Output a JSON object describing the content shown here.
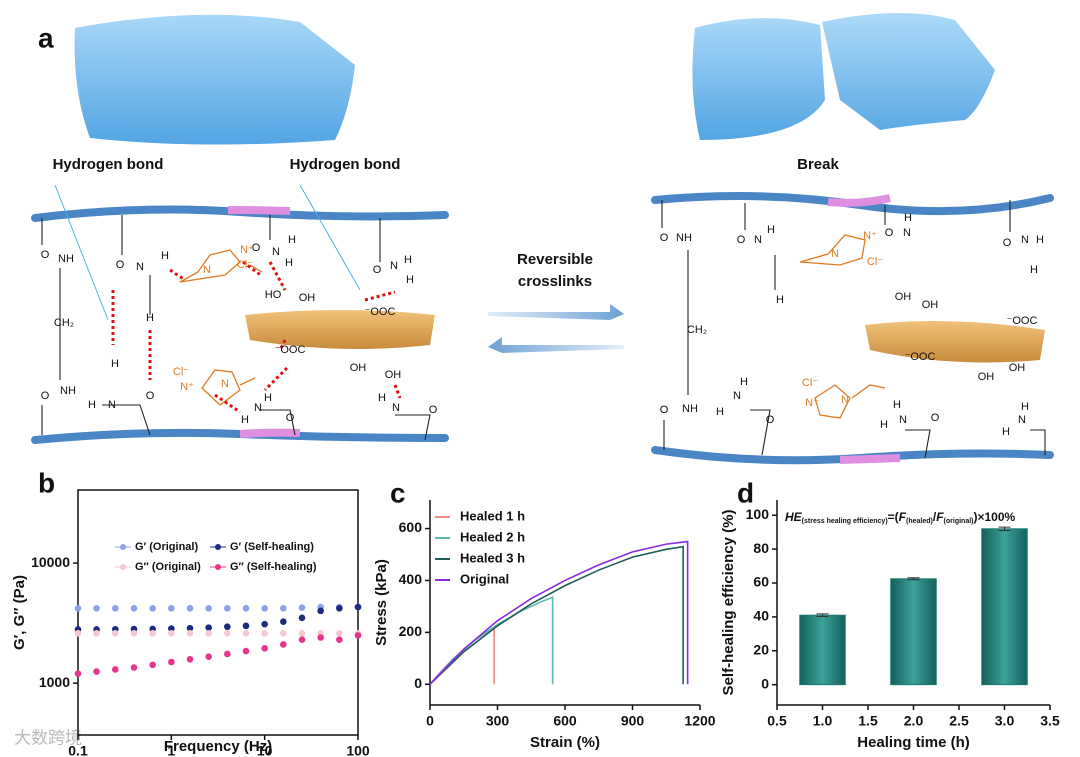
{
  "diagram": {
    "panel_label": "a",
    "hydrogen_bond_left": "Hydrogen bond",
    "hydrogen_bond_right": "Hydrogen bond",
    "break": "Break",
    "arrow_label": [
      "Reversible",
      "crosslinks"
    ],
    "labels": [
      "O",
      "NH",
      "CH₂",
      "NH",
      "O",
      "O",
      "N",
      "H",
      "H",
      "H",
      "H",
      "N",
      "O",
      "O",
      "N",
      "H",
      "H",
      "N",
      "N⁺",
      "Cl⁻",
      "Cl⁻",
      "N⁺",
      "N",
      "O",
      "N",
      "H",
      "H",
      "OH",
      "HO",
      "⁻OOC",
      "⁻OOC",
      "OH",
      "OH",
      "H",
      "N",
      "H",
      "O",
      "H",
      "N",
      "O",
      "O",
      "NH",
      "CH₂",
      "NH",
      "O",
      "O",
      "N",
      "H",
      "H",
      "N",
      "N⁺",
      "Cl⁻",
      "O",
      "N",
      "H",
      "O",
      "N",
      "H",
      "H",
      "OH",
      "OH",
      "⁻OOC",
      "⁻OOC",
      "OH",
      "OH",
      "H",
      "N",
      "H",
      "O",
      "Cl⁻",
      "N⁺",
      "N",
      "H",
      "N",
      "H",
      "O",
      "H",
      "N",
      "H"
    ]
  },
  "chart_data": [
    {
      "type": "scatter",
      "panel_label": "b",
      "xlabel": "Frequency (Hz)",
      "ylabel": "G′, G″ (Pa)",
      "xlog": true,
      "ylog": true,
      "xlim": [
        0.1,
        100
      ],
      "xticks": [
        0.1,
        1,
        10,
        100
      ],
      "ylim": [
        370,
        40600
      ],
      "yticks": [
        1000,
        10000
      ],
      "x": [
        0.1,
        0.158,
        0.251,
        0.398,
        0.631,
        1,
        1.585,
        2.512,
        3.981,
        6.31,
        10,
        15.85,
        25.12,
        39.81,
        63.1,
        100
      ],
      "series": [
        {
          "name": "G′ (Original)",
          "color": "#8fa0ea",
          "values": [
            4200,
            4200,
            4200,
            4200,
            4200,
            4200,
            4200,
            4200,
            4200,
            4200,
            4200,
            4200,
            4250,
            4300,
            4300,
            4300
          ]
        },
        {
          "name": "G′ (Self-healing)",
          "color": "#1c2a80",
          "values": [
            2800,
            2800,
            2810,
            2820,
            2830,
            2850,
            2870,
            2900,
            2950,
            3000,
            3100,
            3250,
            3500,
            4000,
            4200,
            4300
          ]
        },
        {
          "name": "G″ (Original)",
          "color": "#f5c8cf",
          "values": [
            2600,
            2600,
            2600,
            2600,
            2600,
            2600,
            2600,
            2600,
            2600,
            2600,
            2600,
            2600,
            2600,
            2600,
            2600,
            2600
          ]
        },
        {
          "name": "G″ (Self-healing)",
          "color": "#e8358c",
          "values": [
            1200,
            1250,
            1300,
            1350,
            1420,
            1500,
            1580,
            1660,
            1750,
            1850,
            1950,
            2100,
            2300,
            2400,
            2300,
            2500
          ]
        }
      ]
    },
    {
      "type": "line",
      "panel_label": "c",
      "xlabel": "Strain (%)",
      "ylabel": "Stress (kPa)",
      "xlim": [
        0,
        1200
      ],
      "xticks": [
        0,
        300,
        600,
        900,
        1200
      ],
      "ylim": [
        -80,
        710
      ],
      "yticks": [
        0,
        200,
        400,
        600
      ],
      "series": [
        {
          "name": "Healed 1 h",
          "color": "#f08a80",
          "x": [
            0,
            50,
            100,
            150,
            200,
            250,
            285,
            285
          ],
          "values": [
            0,
            50,
            95,
            135,
            170,
            200,
            215,
            0
          ]
        },
        {
          "name": "Healed 2 h",
          "color": "#5cb8b0",
          "x": [
            0,
            100,
            200,
            300,
            400,
            500,
            545,
            545
          ],
          "values": [
            0,
            95,
            170,
            230,
            280,
            320,
            335,
            0
          ]
        },
        {
          "name": "Healed 3 h",
          "color": "#1f5e58",
          "x": [
            0,
            150,
            300,
            450,
            600,
            750,
            900,
            1050,
            1125,
            1125
          ],
          "values": [
            0,
            125,
            225,
            310,
            380,
            440,
            490,
            520,
            530,
            0
          ]
        },
        {
          "name": "Original",
          "color": "#8a2be2",
          "x": [
            0,
            150,
            300,
            450,
            600,
            750,
            900,
            1050,
            1145,
            1145
          ],
          "values": [
            0,
            135,
            245,
            330,
            400,
            460,
            510,
            540,
            550,
            0
          ]
        }
      ]
    },
    {
      "type": "bar",
      "panel_label": "d",
      "xlabel": "Healing time (h)",
      "ylabel": "Self-healing efficiency (%)",
      "annotation": [
        "HE",
        "(stress healing efficiency)",
        "=(",
        "F",
        "(healed)",
        "/",
        "F",
        "(original)",
        ")×100%"
      ],
      "xlim": [
        0.5,
        3.5
      ],
      "xticks": [
        {
          "value": 0.5,
          "label": "0.5"
        },
        {
          "value": 1,
          "label": "1.0"
        },
        {
          "value": 1.5,
          "label": "1.5"
        },
        {
          "value": 2,
          "label": "2.0"
        },
        {
          "value": 2.5,
          "label": "2.5"
        },
        {
          "value": 3,
          "label": "3.0"
        },
        {
          "value": 3.5,
          "label": "3.5"
        }
      ],
      "ylim": [
        -12,
        109
      ],
      "yticks": [
        0,
        20,
        40,
        60,
        80,
        100
      ],
      "x": [
        1,
        2,
        3
      ],
      "values": [
        41,
        62.5,
        92
      ],
      "errors": [
        0.8,
        0.6,
        1.0
      ],
      "color": "#1f7a74"
    }
  ],
  "watermark": "大数跨境"
}
